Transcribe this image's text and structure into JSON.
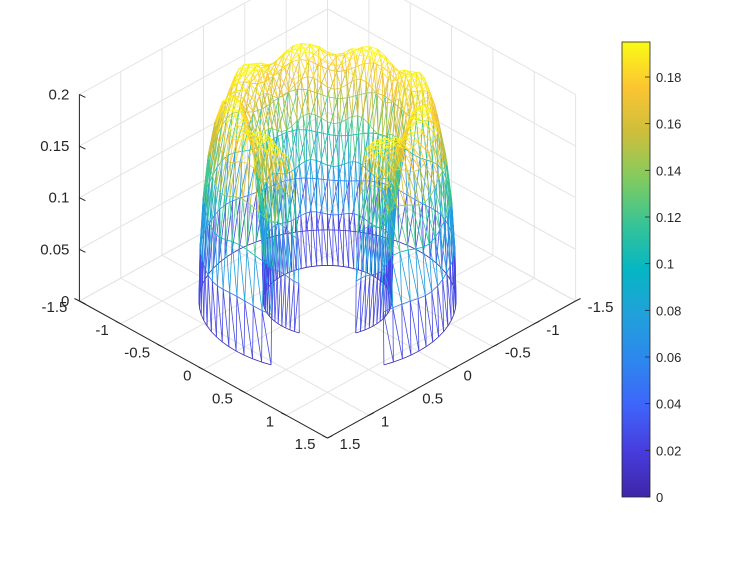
{
  "chart_data": {
    "type": "surface-mesh",
    "title": "",
    "xlabel": "",
    "ylabel": "",
    "zlabel": "",
    "grid": true,
    "colormap": "parula",
    "colorbar_position": "right",
    "x_ticks": [
      "-1.5",
      "-1",
      "-0.5",
      "0",
      "0.5",
      "1",
      "1.5"
    ],
    "y_ticks": [
      "-1.5",
      "-1",
      "-0.5",
      "0",
      "0.5",
      "1",
      "1.5"
    ],
    "z_ticks": [
      "0",
      "0.05",
      "0.1",
      "0.15",
      "0.2"
    ],
    "xlim": [
      -1.5,
      1.5
    ],
    "ylim": [
      -1.5,
      1.5
    ],
    "zlim": [
      0,
      0.2
    ],
    "colorbar_ticks": [
      "0",
      "0.02",
      "0.04",
      "0.06",
      "0.08",
      "0.1",
      "0.12",
      "0.14",
      "0.16",
      "0.18"
    ],
    "clim": [
      0,
      0.195
    ],
    "surface": {
      "shape": "horseshoe tube (annulus with a gap facing the viewer)",
      "inner_radius": 0.55,
      "outer_radius": 1.1,
      "gap_half_angle_deg": 26,
      "max_height": 0.195,
      "min_height": 0.0
    }
  }
}
